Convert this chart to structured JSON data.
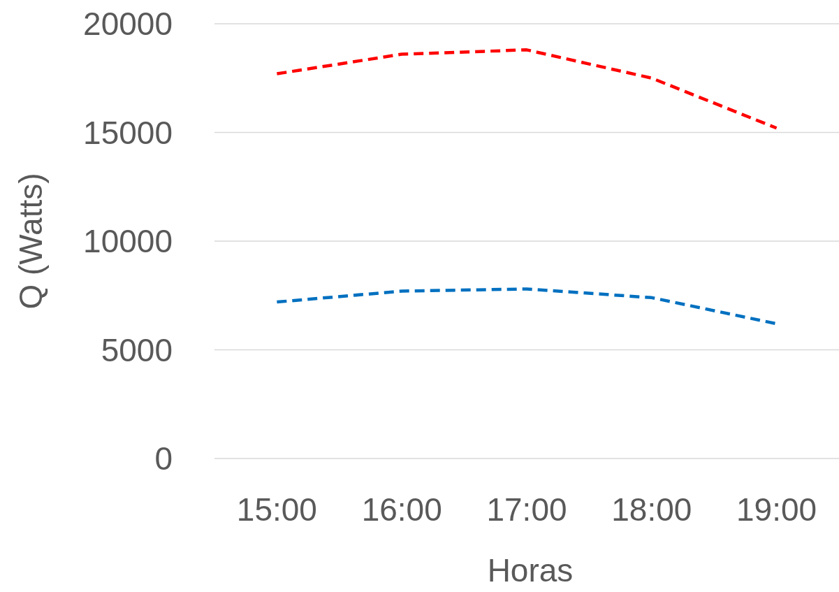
{
  "chart_data": {
    "type": "line",
    "xlabel": "Horas",
    "ylabel": "Q (Watts)",
    "categories": [
      "15:00",
      "16:00",
      "17:00",
      "18:00",
      "19:00"
    ],
    "series": [
      {
        "color": "#ff0000",
        "values": [
          17700,
          18600,
          18800,
          17500,
          15200
        ],
        "line_style": "dashed"
      },
      {
        "color": "#0070c0",
        "values": [
          7200,
          7700,
          7800,
          7400,
          6200
        ],
        "line_style": "dashed"
      }
    ],
    "ylim": [
      0,
      20000
    ],
    "yticks": [
      0,
      5000,
      10000,
      15000,
      20000
    ],
    "grid": "y",
    "marker": "none"
  }
}
